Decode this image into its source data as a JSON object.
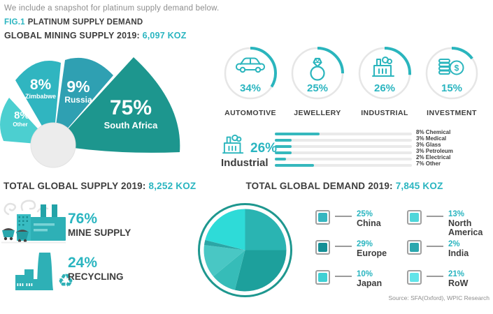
{
  "intro": "We include a snapshot for platinum supply demand below.",
  "fig": {
    "label": "FIG.1",
    "title": "PLATINUM SUPPLY DEMAND"
  },
  "mining": {
    "title": "GLOBAL MINING SUPPLY 2019:",
    "value": "6,097 KOZ"
  },
  "supply": {
    "title": "TOTAL GLOBAL SUPPLY 2019:",
    "value": "8,252 KOZ",
    "items": [
      {
        "pct": "76%",
        "label": "MINE SUPPLY"
      },
      {
        "pct": "24%",
        "label": "RECYCLING"
      }
    ]
  },
  "demand": {
    "title": "TOTAL GLOBAL DEMAND 2019:",
    "value": "7,845 KOZ"
  },
  "source": "Source: SFA(Oxford), WPIC Research",
  "colors": {
    "accent": "#2ab5c0",
    "dark": "#3d3d3d",
    "gray": "#8e8e8e"
  },
  "chart_data": [
    {
      "id": "global-mining-supply-by-country",
      "type": "pie",
      "title": "GLOBAL MINING SUPPLY 2019: 6,097 KOZ",
      "slices": [
        {
          "label": "South Africa",
          "pct": 75,
          "pct_label": "75%",
          "color": "#1d968e"
        },
        {
          "label": "Russia",
          "pct": 9,
          "pct_label": "9%",
          "color": "#2fa0b2"
        },
        {
          "label": "Zimbabwe",
          "pct": 8,
          "pct_label": "8%",
          "color": "#30b5c0"
        },
        {
          "label": "Other",
          "pct": 8,
          "pct_label": "8%",
          "color": "#4ccfd0"
        }
      ]
    },
    {
      "id": "platinum-demand-by-sector",
      "type": "bar",
      "title": "Platinum demand by sector (gauge circles)",
      "items": [
        {
          "label": "AUTOMOTIVE",
          "pct": 34,
          "pct_label": "34%",
          "icon": "car-icon"
        },
        {
          "label": "JEWELLERY",
          "pct": 25,
          "pct_label": "25%",
          "icon": "ring-icon"
        },
        {
          "label": "INDUSTRIAL",
          "pct": 26,
          "pct_label": "26%",
          "icon": "factory-icon"
        },
        {
          "label": "INVESTMENT",
          "pct": 15,
          "pct_label": "15%",
          "icon": "coins-icon"
        }
      ]
    },
    {
      "id": "industrial-demand-breakdown",
      "type": "bar",
      "title": "Industrial 26% breakdown",
      "header_pct": "26%",
      "header_label": "Industrial",
      "bars": [
        {
          "label": "8% Chemical",
          "pct": 8
        },
        {
          "label": "3% Medical",
          "pct": 3
        },
        {
          "label": "3% Glass",
          "pct": 3
        },
        {
          "label": "3% Petroleum",
          "pct": 3
        },
        {
          "label": "2% Electrical",
          "pct": 2
        },
        {
          "label": "7% Other",
          "pct": 7
        }
      ]
    },
    {
      "id": "total-global-demand-by-region",
      "type": "pie",
      "title": "TOTAL GLOBAL DEMAND 2019: 7,845 KOZ",
      "slices": [
        {
          "label": "China",
          "pct": 25,
          "pct_label": "25%",
          "color": "#2ab4b2",
          "legend_color": "#36b6c0"
        },
        {
          "label": "Europe",
          "pct": 29,
          "pct_label": "29%",
          "color": "#1da09c",
          "legend_color": "#158f96"
        },
        {
          "label": "Japan",
          "pct": 10,
          "pct_label": "10%",
          "color": "#36bcb8",
          "legend_color": "#3fd0d4"
        },
        {
          "label": "North America",
          "pct": 13,
          "pct_label": "13%",
          "color": "#49c7c4",
          "legend_color": "#4fd6da"
        },
        {
          "label": "India",
          "pct": 2,
          "pct_label": "2%",
          "color": "#2ba6a6",
          "legend_color": "#2ba7ae"
        },
        {
          "label": "RoW",
          "pct": 21,
          "pct_label": "21%",
          "color": "#2edbd8",
          "legend_color": "#62e4e9"
        }
      ]
    }
  ]
}
